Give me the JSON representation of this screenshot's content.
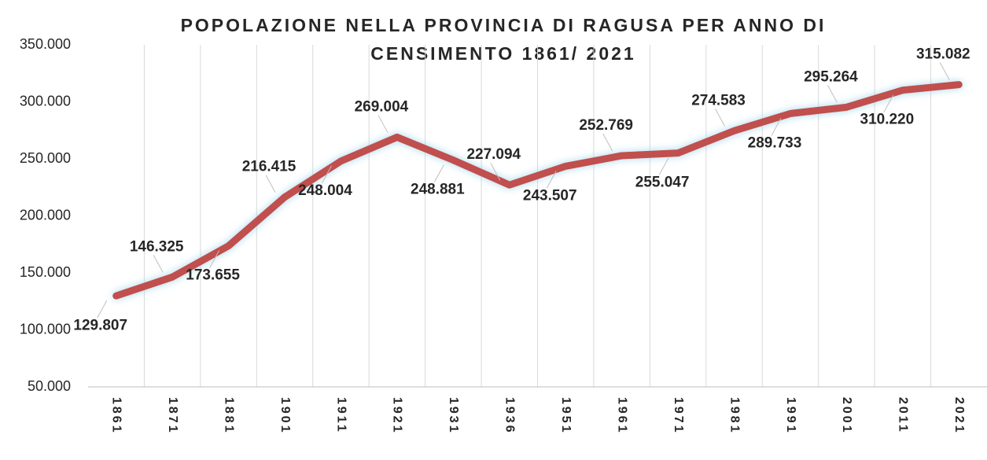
{
  "chart_data": {
    "type": "line",
    "title": "POPOLAZIONE NELLA PROVINCIA DI RAGUSA PER ANNO DI CENSIMENTO 1861/ 2021",
    "categories": [
      "1861",
      "1871",
      "1881",
      "1901",
      "1911",
      "1921",
      "1931",
      "1936",
      "1951",
      "1961",
      "1971",
      "1981",
      "1991",
      "2001",
      "2011",
      "2021"
    ],
    "values": [
      129807,
      146325,
      173655,
      216415,
      248004,
      269004,
      248881,
      227094,
      243507,
      252769,
      255047,
      274583,
      289733,
      295264,
      310220,
      315082
    ],
    "value_labels": [
      "129.807",
      "146.325",
      "173.655",
      "216.415",
      "248.004",
      "269.004",
      "248.881",
      "227.094",
      "243.507",
      "252.769",
      "255.047",
      "274.583",
      "289.733",
      "295.264",
      "310.220",
      "315.082"
    ],
    "color": "#c0504d",
    "ylim": [
      50000,
      350000
    ],
    "yticks": [
      {
        "value": 50000,
        "label": "50.000"
      },
      {
        "value": 100000,
        "label": "100.000"
      },
      {
        "value": 150000,
        "label": "150.000"
      },
      {
        "value": 200000,
        "label": "200.000"
      },
      {
        "value": 250000,
        "label": "250.000"
      },
      {
        "value": 300000,
        "label": "300.000"
      },
      {
        "value": 350000,
        "label": "350.000"
      }
    ],
    "grid": true
  }
}
